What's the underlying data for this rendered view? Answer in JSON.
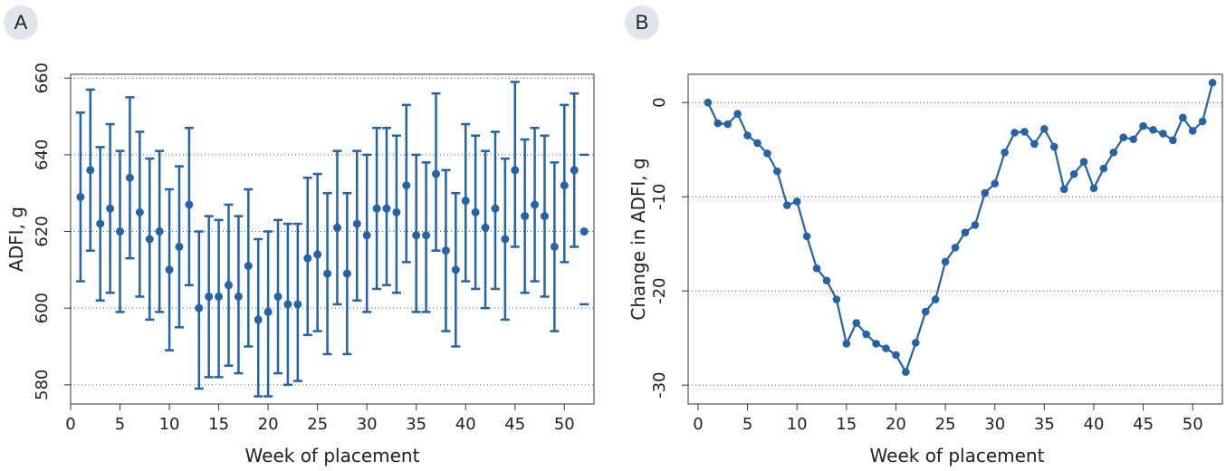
{
  "panels": {
    "a_label": "A",
    "b_label": "B"
  },
  "colors": {
    "series": "#2463a6",
    "grid": "#555555",
    "frame": "#333333",
    "badge_bg": "#dfe6ee"
  },
  "chart_data": [
    {
      "type": "scatter",
      "error_bars": true,
      "xlabel": "Week of placement",
      "ylabel": "ADFI, g",
      "xlim": [
        0,
        53
      ],
      "ylim": [
        575,
        661
      ],
      "xticks": [
        0,
        5,
        10,
        15,
        20,
        25,
        30,
        35,
        40,
        45,
        50
      ],
      "yticks": [
        580,
        600,
        620,
        640,
        660
      ],
      "grid": "horizontal dotted",
      "weeks": [
        1,
        2,
        3,
        4,
        5,
        6,
        7,
        8,
        9,
        10,
        11,
        12,
        13,
        14,
        15,
        16,
        17,
        18,
        19,
        20,
        21,
        22,
        23,
        24,
        25,
        26,
        27,
        28,
        29,
        30,
        31,
        32,
        33,
        34,
        35,
        36,
        37,
        38,
        39,
        40,
        41,
        42,
        43,
        44,
        45,
        46,
        47,
        48,
        49,
        50,
        51,
        52
      ],
      "mean": [
        629,
        636,
        622,
        626,
        620,
        634,
        625,
        618,
        620,
        610,
        616,
        627,
        600,
        603,
        603,
        606,
        603,
        611,
        597,
        599,
        603,
        601,
        601,
        613,
        614,
        609,
        621,
        609,
        622,
        619,
        626,
        626,
        625,
        632,
        619,
        619,
        635,
        615,
        610,
        628,
        625,
        621,
        626,
        618,
        636,
        624,
        627,
        624,
        616,
        632,
        636,
        620
      ],
      "lower": [
        607,
        615,
        602,
        604,
        599,
        613,
        603,
        597,
        599,
        589,
        595,
        606,
        579,
        582,
        582,
        585,
        583,
        590,
        577,
        577,
        583,
        580,
        581,
        593,
        594,
        588,
        601,
        588,
        602,
        599,
        605,
        606,
        604,
        612,
        599,
        599,
        615,
        594,
        590,
        607,
        605,
        600,
        605,
        597,
        616,
        604,
        607,
        603,
        594,
        612,
        616,
        601
      ],
      "upper": [
        651,
        657,
        642,
        648,
        641,
        655,
        646,
        639,
        641,
        631,
        637,
        647,
        620,
        624,
        623,
        627,
        624,
        631,
        618,
        620,
        623,
        622,
        622,
        634,
        635,
        630,
        641,
        630,
        641,
        640,
        647,
        647,
        645,
        653,
        640,
        638,
        656,
        636,
        630,
        648,
        645,
        641,
        646,
        639,
        659,
        644,
        647,
        645,
        638,
        653,
        656,
        640
      ]
    },
    {
      "type": "line",
      "xlabel": "Week of placement",
      "ylabel": "Change in ADFI, g",
      "xlim": [
        -1,
        53
      ],
      "ylim": [
        -32,
        3
      ],
      "xticks": [
        0,
        5,
        10,
        15,
        20,
        25,
        30,
        35,
        40,
        45,
        50
      ],
      "yticks": [
        0,
        -10,
        -20,
        -30
      ],
      "grid": "horizontal dotted",
      "x": [
        1,
        2,
        3,
        4,
        5,
        6,
        7,
        8,
        9,
        10,
        11,
        12,
        13,
        14,
        15,
        16,
        17,
        18,
        19,
        20,
        21,
        22,
        23,
        24,
        25,
        26,
        27,
        28,
        29,
        30,
        31,
        32,
        33,
        34,
        35,
        36,
        37,
        38,
        39,
        40,
        41,
        42,
        43,
        44,
        45,
        46,
        47,
        48,
        49,
        50,
        51,
        52
      ],
      "y": [
        0,
        -2.2,
        -2.3,
        -1.2,
        -3.5,
        -4.3,
        -5.4,
        -7.3,
        -10.9,
        -10.5,
        -14.2,
        -17.6,
        -18.9,
        -20.9,
        -25.6,
        -23.4,
        -24.6,
        -25.6,
        -26.1,
        -26.8,
        -28.6,
        -25.5,
        -22.2,
        -20.9,
        -16.9,
        -15.4,
        -13.8,
        -13.0,
        -9.6,
        -8.6,
        -5.3,
        -3.2,
        -3.1,
        -4.4,
        -2.8,
        -4.7,
        -9.2,
        -7.6,
        -6.3,
        -9.1,
        -7.0,
        -5.3,
        -3.7,
        -3.9,
        -2.5,
        -2.9,
        -3.3,
        -4.0,
        -1.6,
        -3.0,
        -2.0,
        2.1
      ]
    }
  ]
}
